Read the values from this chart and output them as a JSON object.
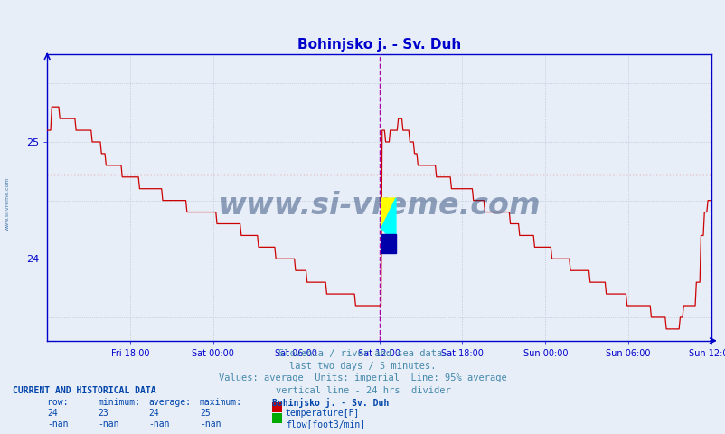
{
  "title": "Bohinjsko j. - Sv. Duh",
  "title_color": "#0000cc",
  "bg_color": "#e8eef8",
  "plot_bg_color": "#e8eef8",
  "grid_color": "#aabbcc",
  "line_color": "#cc0000",
  "avg_line_color": "#dd6666",
  "vline_color": "#aa00aa",
  "axis_color": "#0000cc",
  "tick_color": "#0000cc",
  "yticks": [
    24,
    25
  ],
  "ymin": 23.3,
  "ymax": 25.75,
  "avg_value": 24.72,
  "num_points": 576,
  "subtitle_lines": [
    "Slovenia / river and sea data.",
    "last two days / 5 minutes.",
    "Values: average  Units: imperial  Line: 95% average",
    "vertical line - 24 hrs  divider"
  ],
  "footer_title": "CURRENT AND HISTORICAL DATA",
  "footer_cols": [
    "now:",
    "minimum:",
    "average:",
    "maximum:",
    "Bohinjsko j. - Sv. Duh"
  ],
  "footer_row1": [
    "24",
    "23",
    "24",
    "25",
    "temperature[F]"
  ],
  "footer_row2": [
    "-nan",
    "-nan",
    "-nan",
    "-nan",
    "flow[foot3/min]"
  ],
  "temp_color": "#cc0000",
  "flow_color": "#00aa00",
  "watermark_color": "#1a3a6a",
  "xtick_labels": [
    "Fri 18:00",
    "Sat 00:00",
    "Sat 06:00",
    "Sat 12:00",
    "Sat 18:00",
    "Sun 00:00",
    "Sun 06:00",
    "Sun 12:00"
  ],
  "xtick_positions": [
    0.125,
    0.25,
    0.375,
    0.5,
    0.625,
    0.75,
    0.875,
    1.0
  ]
}
